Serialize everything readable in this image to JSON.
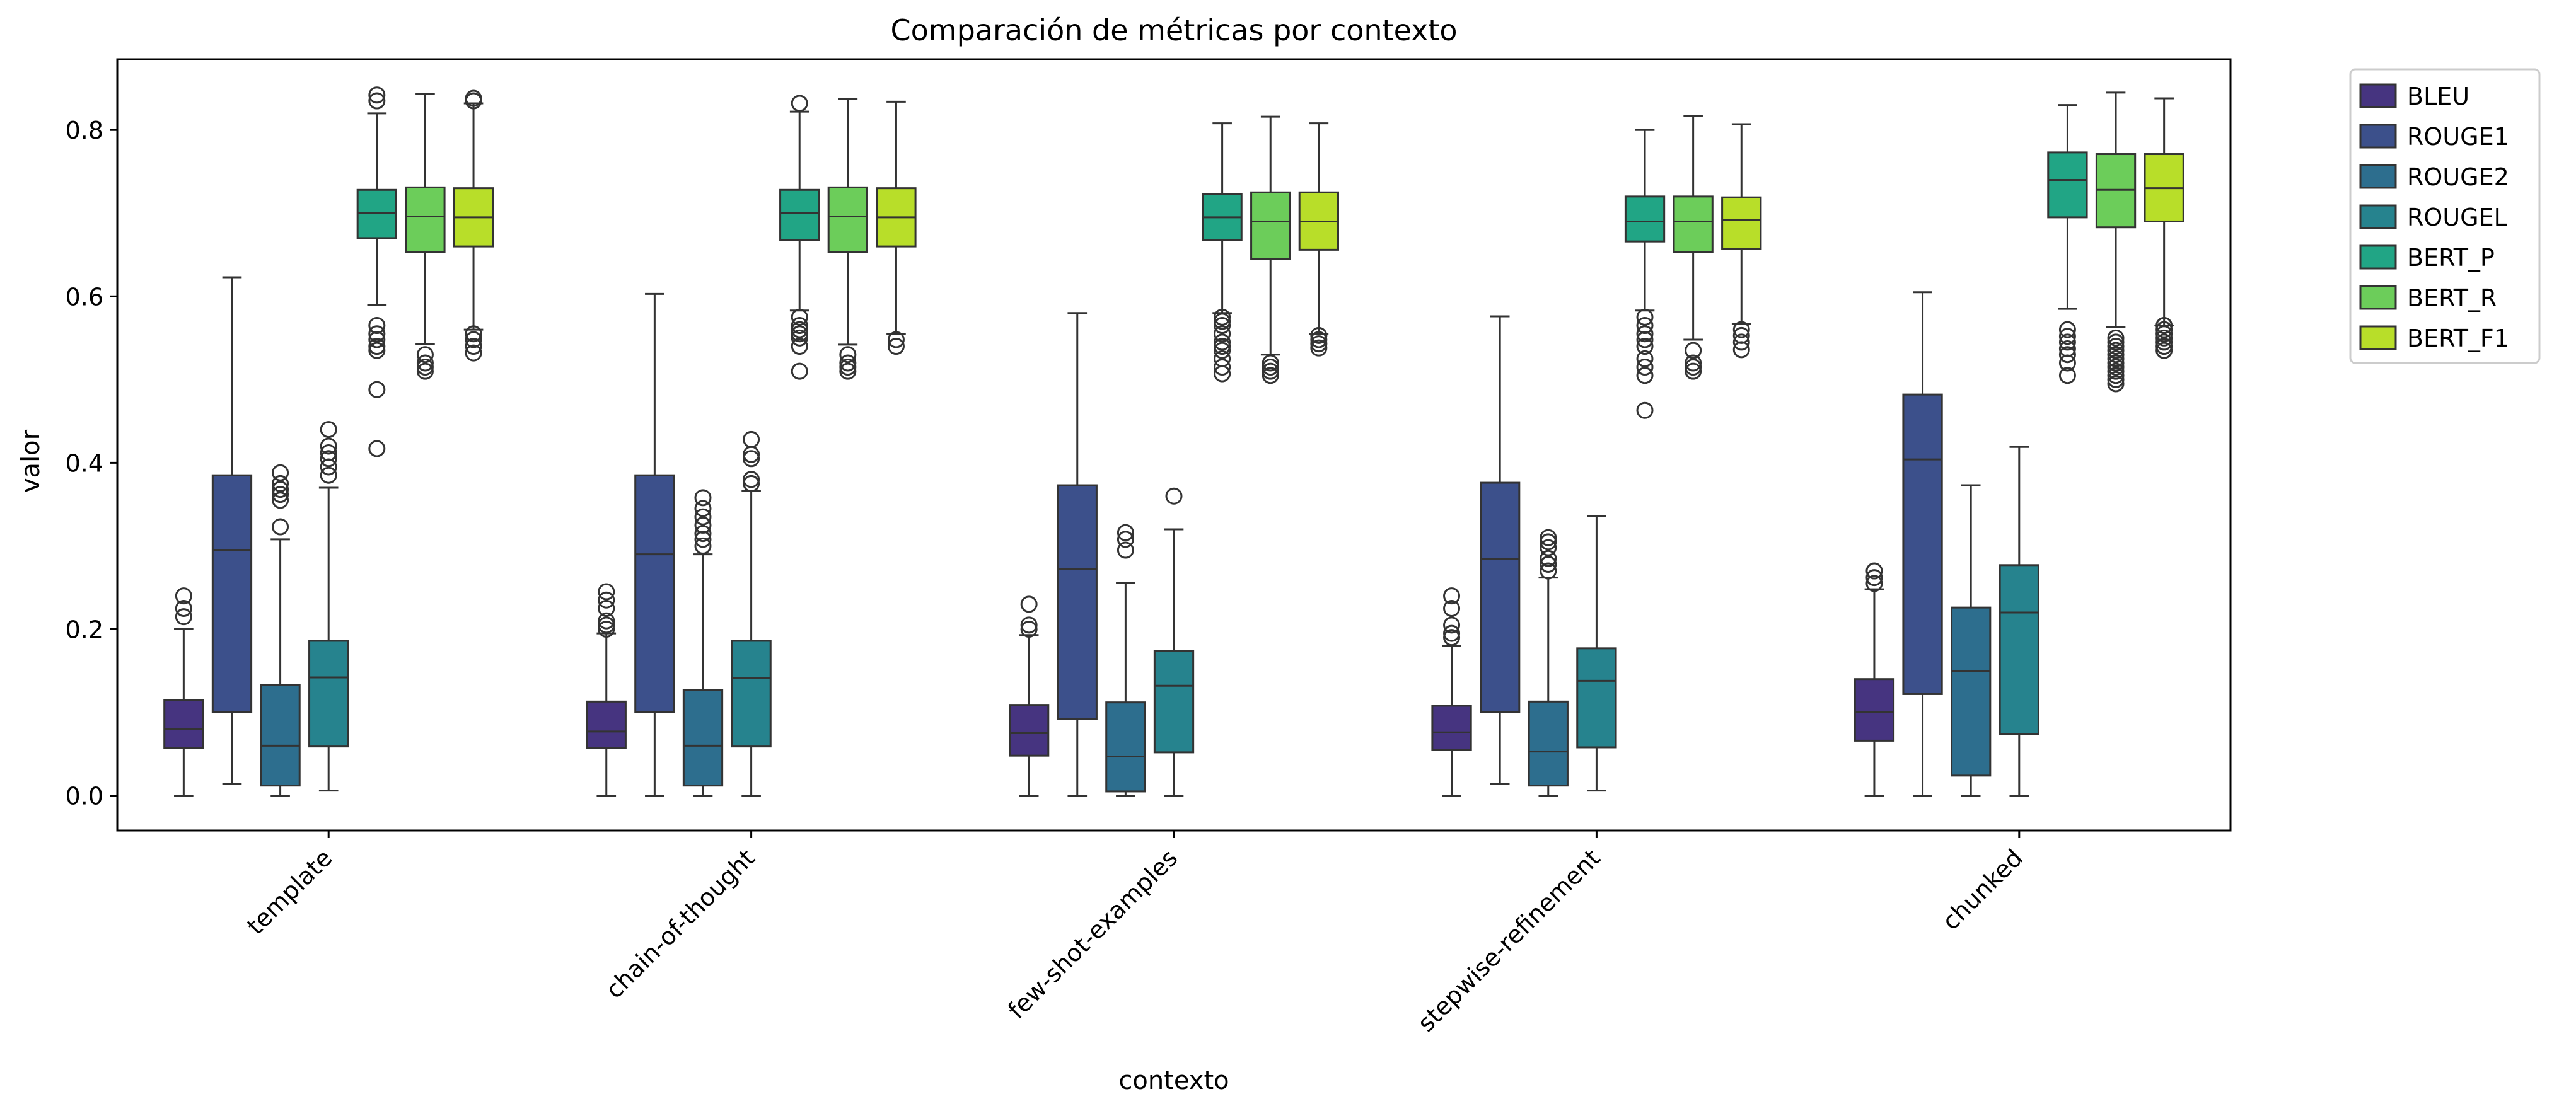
{
  "chart_data": {
    "type": "boxplot",
    "title": "Comparación de métricas por contexto",
    "xlabel": "contexto",
    "ylabel": "valor",
    "ylim": [
      -0.042,
      0.885
    ],
    "yticks": [
      "0.0",
      "0.2",
      "0.4",
      "0.6",
      "0.8"
    ],
    "grid": false,
    "legend_position": "outside-top-right",
    "categories": [
      "template",
      "chain-of-thought",
      "few-shot-examples",
      "stepwise-refinement",
      "chunked"
    ],
    "series": [
      {
        "name": "BLEU",
        "color": "#463480",
        "boxes": [
          {
            "whislo": 0.0,
            "q1": 0.057,
            "med": 0.08,
            "q3": 0.115,
            "whishi": 0.2,
            "fliers": [
              0.215,
              0.225,
              0.24
            ]
          },
          {
            "whislo": 0.0,
            "q1": 0.057,
            "med": 0.077,
            "q3": 0.113,
            "whishi": 0.195,
            "fliers": [
              0.2,
              0.205,
              0.21,
              0.225,
              0.235,
              0.245
            ]
          },
          {
            "whislo": 0.0,
            "q1": 0.048,
            "med": 0.075,
            "q3": 0.109,
            "whishi": 0.193,
            "fliers": [
              0.2,
              0.205,
              0.23
            ]
          },
          {
            "whislo": 0.0,
            "q1": 0.055,
            "med": 0.076,
            "q3": 0.108,
            "whishi": 0.18,
            "fliers": [
              0.19,
              0.195,
              0.205,
              0.225,
              0.24
            ]
          },
          {
            "whislo": 0.0,
            "q1": 0.066,
            "med": 0.1,
            "q3": 0.14,
            "whishi": 0.248,
            "fliers": [
              0.255,
              0.262,
              0.27
            ]
          }
        ]
      },
      {
        "name": "ROUGE1",
        "color": "#3c508b",
        "boxes": [
          {
            "whislo": 0.014,
            "q1": 0.1,
            "med": 0.295,
            "q3": 0.385,
            "whishi": 0.623,
            "fliers": []
          },
          {
            "whislo": 0.0,
            "q1": 0.1,
            "med": 0.29,
            "q3": 0.385,
            "whishi": 0.603,
            "fliers": []
          },
          {
            "whislo": 0.0,
            "q1": 0.092,
            "med": 0.272,
            "q3": 0.373,
            "whishi": 0.58,
            "fliers": []
          },
          {
            "whislo": 0.014,
            "q1": 0.1,
            "med": 0.284,
            "q3": 0.376,
            "whishi": 0.576,
            "fliers": []
          },
          {
            "whislo": 0.0,
            "q1": 0.122,
            "med": 0.404,
            "q3": 0.482,
            "whishi": 0.605,
            "fliers": []
          }
        ]
      },
      {
        "name": "ROUGE2",
        "color": "#2d6e8e",
        "boxes": [
          {
            "whislo": 0.0,
            "q1": 0.012,
            "med": 0.06,
            "q3": 0.133,
            "whishi": 0.308,
            "fliers": [
              0.323,
              0.355,
              0.362,
              0.368,
              0.375,
              0.388
            ]
          },
          {
            "whislo": 0.0,
            "q1": 0.012,
            "med": 0.06,
            "q3": 0.127,
            "whishi": 0.29,
            "fliers": [
              0.3,
              0.308,
              0.315,
              0.325,
              0.335,
              0.345,
              0.358
            ]
          },
          {
            "whislo": 0.0,
            "q1": 0.005,
            "med": 0.047,
            "q3": 0.112,
            "whishi": 0.256,
            "fliers": [
              0.295,
              0.308,
              0.316
            ]
          },
          {
            "whislo": 0.0,
            "q1": 0.012,
            "med": 0.053,
            "q3": 0.113,
            "whishi": 0.262,
            "fliers": [
              0.27,
              0.278,
              0.285,
              0.298,
              0.305,
              0.31
            ]
          },
          {
            "whislo": 0.0,
            "q1": 0.024,
            "med": 0.15,
            "q3": 0.226,
            "whishi": 0.373,
            "fliers": []
          }
        ]
      },
      {
        "name": "ROUGEL",
        "color": "#26838e",
        "boxes": [
          {
            "whislo": 0.006,
            "q1": 0.059,
            "med": 0.142,
            "q3": 0.186,
            "whishi": 0.37,
            "fliers": [
              0.385,
              0.395,
              0.405,
              0.412,
              0.42,
              0.44
            ]
          },
          {
            "whislo": 0.0,
            "q1": 0.059,
            "med": 0.141,
            "q3": 0.186,
            "whishi": 0.366,
            "fliers": [
              0.375,
              0.38,
              0.405,
              0.41,
              0.428
            ]
          },
          {
            "whislo": 0.0,
            "q1": 0.052,
            "med": 0.132,
            "q3": 0.174,
            "whishi": 0.32,
            "fliers": [
              0.36
            ]
          },
          {
            "whislo": 0.006,
            "q1": 0.058,
            "med": 0.138,
            "q3": 0.177,
            "whishi": 0.336,
            "fliers": []
          },
          {
            "whislo": 0.0,
            "q1": 0.074,
            "med": 0.22,
            "q3": 0.277,
            "whishi": 0.419,
            "fliers": []
          }
        ]
      },
      {
        "name": "BERT_P",
        "color": "#21a585",
        "boxes": [
          {
            "whislo": 0.59,
            "q1": 0.67,
            "med": 0.7,
            "q3": 0.728,
            "whishi": 0.82,
            "fliers": [
              0.417,
              0.488,
              0.535,
              0.54,
              0.548,
              0.555,
              0.565,
              0.835,
              0.842
            ]
          },
          {
            "whislo": 0.583,
            "q1": 0.668,
            "med": 0.7,
            "q3": 0.728,
            "whishi": 0.822,
            "fliers": [
              0.51,
              0.54,
              0.55,
              0.555,
              0.56,
              0.565,
              0.575,
              0.832
            ]
          },
          {
            "whislo": 0.58,
            "q1": 0.668,
            "med": 0.695,
            "q3": 0.723,
            "whishi": 0.808,
            "fliers": [
              0.507,
              0.515,
              0.525,
              0.535,
              0.54,
              0.545,
              0.555,
              0.565,
              0.57,
              0.575
            ]
          },
          {
            "whislo": 0.583,
            "q1": 0.666,
            "med": 0.69,
            "q3": 0.72,
            "whishi": 0.8,
            "fliers": [
              0.463,
              0.505,
              0.515,
              0.525,
              0.54,
              0.548,
              0.555,
              0.565,
              0.575
            ]
          },
          {
            "whislo": 0.585,
            "q1": 0.695,
            "med": 0.74,
            "q3": 0.773,
            "whishi": 0.83,
            "fliers": [
              0.505,
              0.52,
              0.53,
              0.537,
              0.545,
              0.552,
              0.56
            ]
          }
        ]
      },
      {
        "name": "BERT_R",
        "color": "#6ccd5a",
        "boxes": [
          {
            "whislo": 0.543,
            "q1": 0.653,
            "med": 0.696,
            "q3": 0.731,
            "whishi": 0.843,
            "fliers": [
              0.51,
              0.515,
              0.52,
              0.53
            ]
          },
          {
            "whislo": 0.542,
            "q1": 0.653,
            "med": 0.696,
            "q3": 0.731,
            "whishi": 0.837,
            "fliers": [
              0.51,
              0.515,
              0.52,
              0.53
            ]
          },
          {
            "whislo": 0.53,
            "q1": 0.645,
            "med": 0.69,
            "q3": 0.725,
            "whishi": 0.816,
            "fliers": [
              0.505,
              0.51,
              0.515,
              0.52
            ]
          },
          {
            "whislo": 0.548,
            "q1": 0.653,
            "med": 0.69,
            "q3": 0.72,
            "whishi": 0.817,
            "fliers": [
              0.51,
              0.515,
              0.52,
              0.535
            ]
          },
          {
            "whislo": 0.563,
            "q1": 0.683,
            "med": 0.728,
            "q3": 0.771,
            "whishi": 0.845,
            "fliers": [
              0.495,
              0.5,
              0.505,
              0.51,
              0.515,
              0.52,
              0.525,
              0.53,
              0.535,
              0.54,
              0.545,
              0.55
            ]
          }
        ]
      },
      {
        "name": "BERT_F1",
        "color": "#b8de29",
        "boxes": [
          {
            "whislo": 0.56,
            "q1": 0.66,
            "med": 0.695,
            "q3": 0.73,
            "whishi": 0.832,
            "fliers": [
              0.532,
              0.54,
              0.548,
              0.555,
              0.835,
              0.838
            ]
          },
          {
            "whislo": 0.555,
            "q1": 0.66,
            "med": 0.695,
            "q3": 0.73,
            "whishi": 0.834,
            "fliers": [
              0.54,
              0.548
            ]
          },
          {
            "whislo": 0.555,
            "q1": 0.656,
            "med": 0.69,
            "q3": 0.725,
            "whishi": 0.808,
            "fliers": [
              0.538,
              0.543,
              0.548,
              0.553
            ]
          },
          {
            "whislo": 0.567,
            "q1": 0.657,
            "med": 0.692,
            "q3": 0.719,
            "whishi": 0.807,
            "fliers": [
              0.536,
              0.545,
              0.553,
              0.56
            ]
          },
          {
            "whislo": 0.565,
            "q1": 0.69,
            "med": 0.73,
            "q3": 0.771,
            "whishi": 0.838,
            "fliers": [
              0.535,
              0.54,
              0.545,
              0.55,
              0.555,
              0.56,
              0.565
            ]
          }
        ]
      }
    ]
  }
}
